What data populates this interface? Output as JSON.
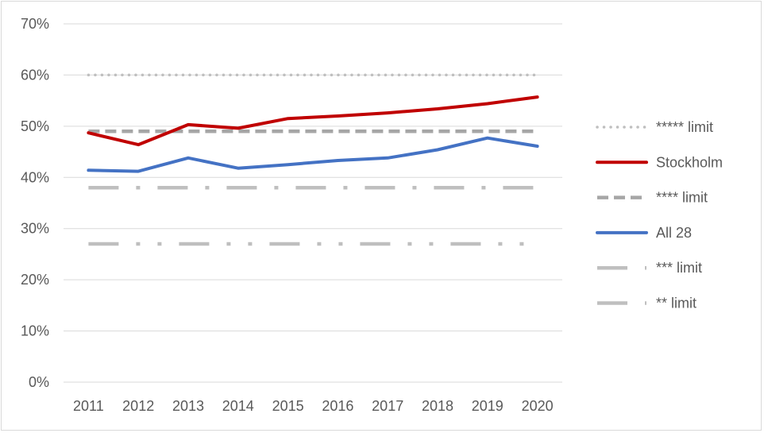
{
  "chart_data": {
    "type": "line",
    "title": "",
    "xlabel": "",
    "ylabel": "",
    "x": [
      "2011",
      "2012",
      "2013",
      "2014",
      "2015",
      "2016",
      "2017",
      "2018",
      "2019",
      "2020"
    ],
    "yticks": [
      "0%",
      "10%",
      "20%",
      "30%",
      "40%",
      "50%",
      "60%",
      "70%"
    ],
    "ylim": [
      0,
      70
    ],
    "grid": "horizontal",
    "legend_position": "right",
    "series": [
      {
        "name": "***** limit",
        "color": "#bfbfbf",
        "style": "dotted",
        "values": [
          60,
          60,
          60,
          60,
          60,
          60,
          60,
          60,
          60,
          60
        ]
      },
      {
        "name": "Stockholm",
        "color": "#c00000",
        "style": "solid",
        "values": [
          48.7,
          46.4,
          50.3,
          49.6,
          51.5,
          52.0,
          52.6,
          53.4,
          54.4,
          55.7
        ]
      },
      {
        "name": "**** limit",
        "color": "#a6a6a6",
        "style": "dashed",
        "values": [
          49,
          49,
          49,
          49,
          49,
          49,
          49,
          49,
          49,
          49
        ]
      },
      {
        "name": "All 28",
        "color": "#4472c4",
        "style": "solid",
        "values": [
          41.4,
          41.2,
          43.8,
          41.8,
          42.5,
          43.3,
          43.8,
          45.4,
          47.7,
          46.1
        ]
      },
      {
        "name": "*** limit",
        "color": "#bfbfbf",
        "style": "dashdot",
        "values": [
          38,
          38,
          38,
          38,
          38,
          38,
          38,
          38,
          38,
          38
        ]
      },
      {
        "name": "** limit",
        "color": "#bfbfbf",
        "style": "dashdotdot",
        "values": [
          27,
          27,
          27,
          27,
          27,
          27,
          27,
          27,
          27,
          27
        ]
      }
    ]
  }
}
